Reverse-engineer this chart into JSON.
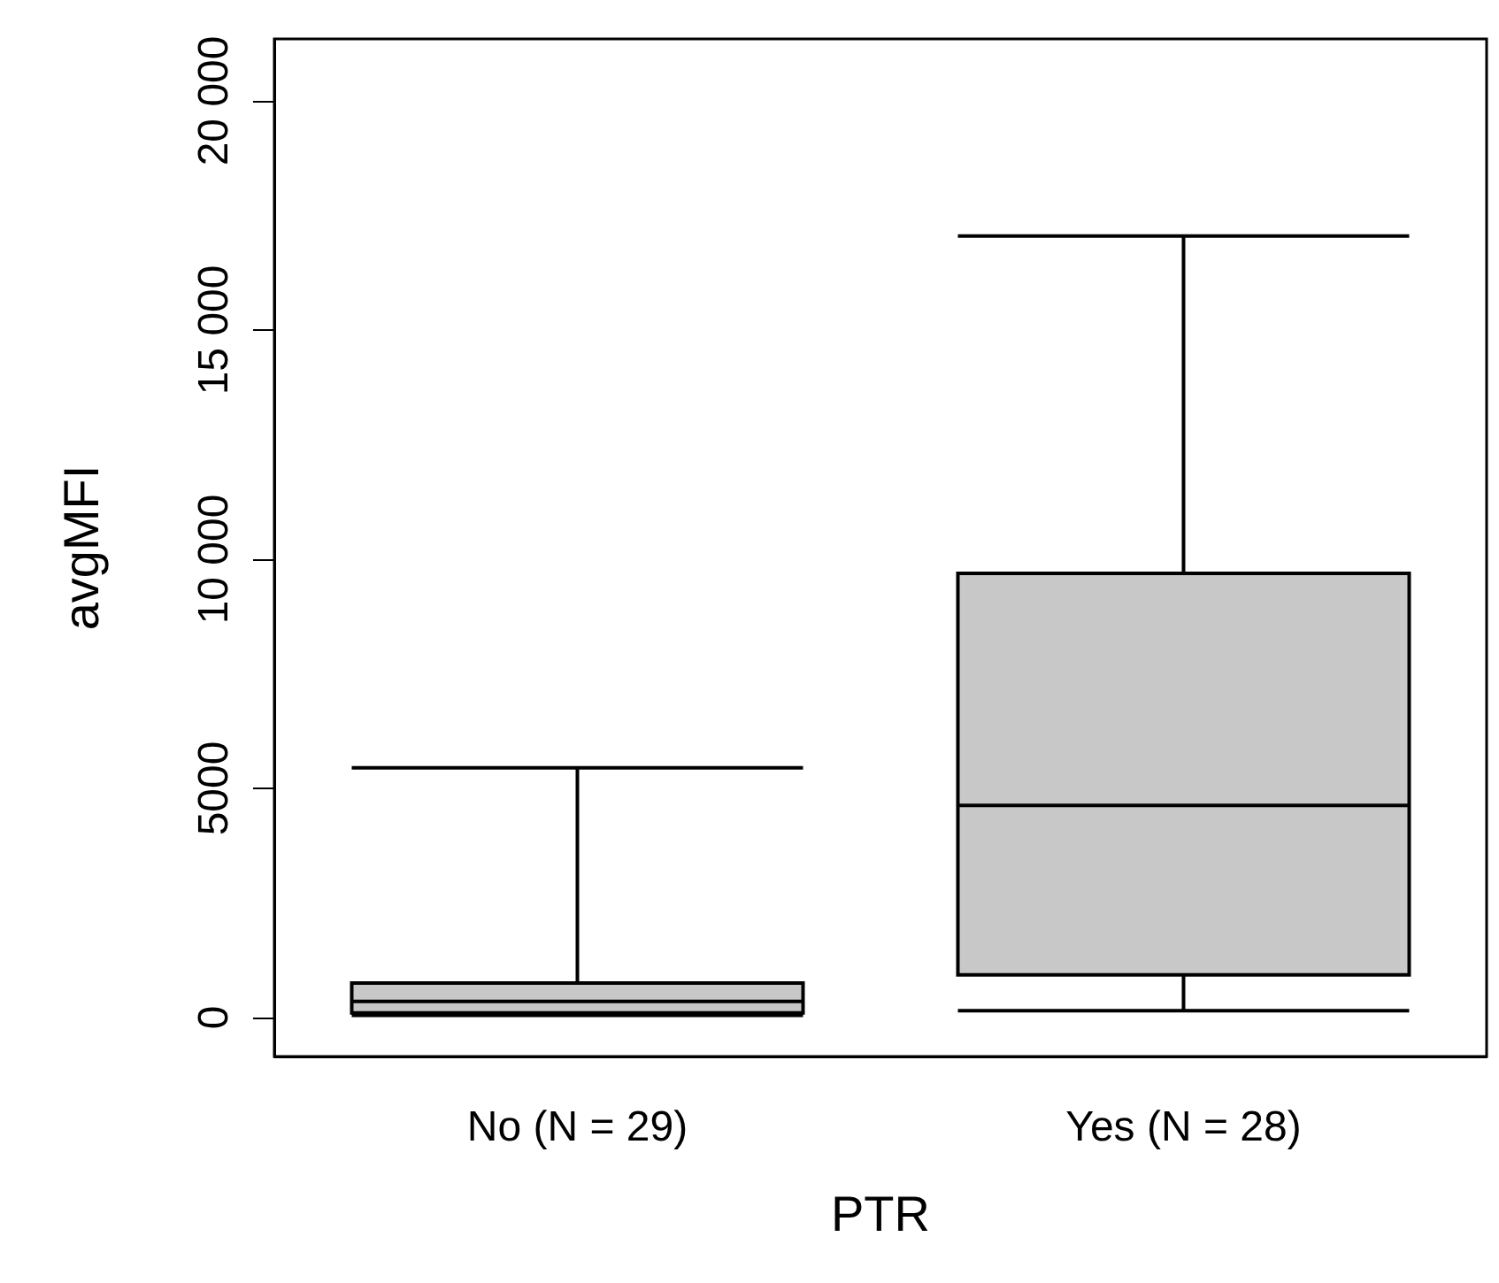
{
  "chart_data": {
    "type": "box",
    "xlabel": "PTR",
    "ylabel": "avgMFI",
    "categories": [
      "No (N = 29)",
      "Yes (N = 28)"
    ],
    "boxes": [
      {
        "low": 50,
        "q1": 100,
        "median": 350,
        "q3": 750,
        "high": 5450
      },
      {
        "low": 150,
        "q1": 930,
        "median": 4630,
        "q3": 9690,
        "high": 17050
      }
    ],
    "color": "#c8c8c8",
    "ylim": [
      -850,
      21350
    ],
    "yticks": [
      0,
      5000,
      {
        "value": 10000,
        "label": "10 000"
      },
      {
        "value": 15000,
        "label": "15 000"
      },
      {
        "value": 20000,
        "label": "20 000"
      }
    ],
    "grid": false
  }
}
